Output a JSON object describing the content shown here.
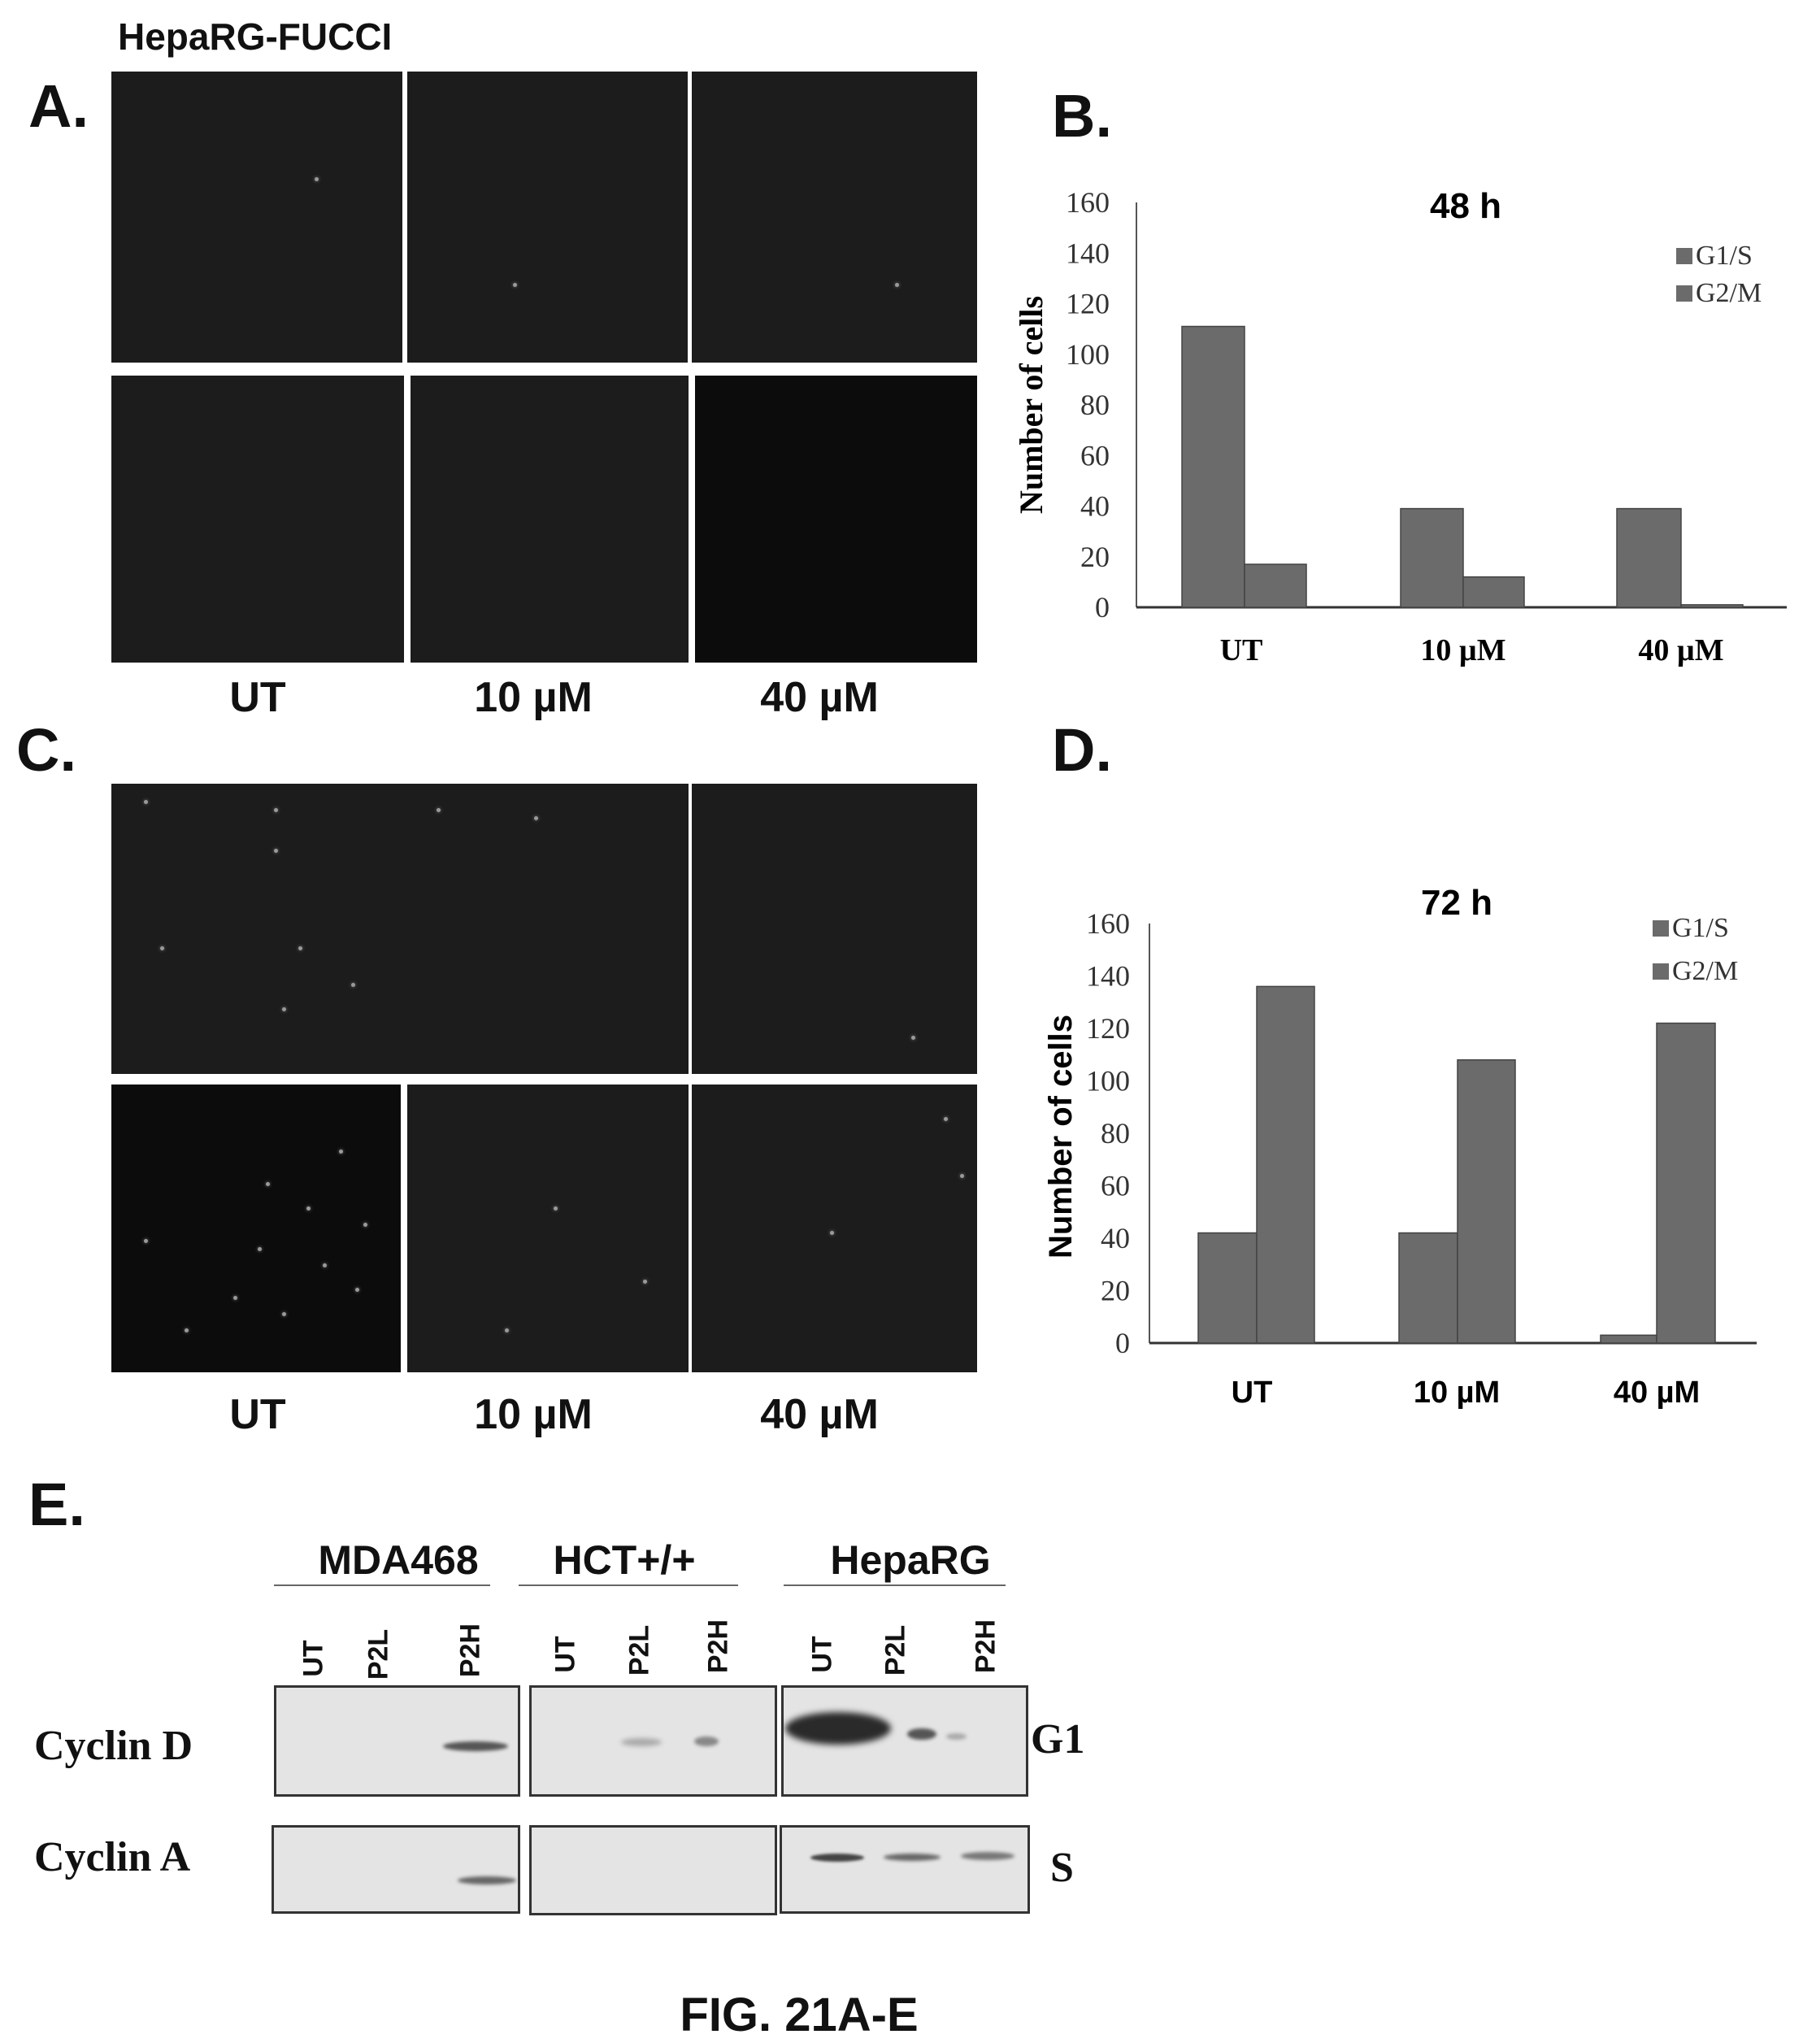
{
  "header": {
    "title": "HepaRG-FUCCI"
  },
  "panels": {
    "a": "A.",
    "b": "B.",
    "c": "C.",
    "d": "D.",
    "e": "E."
  },
  "conditions": [
    "UT",
    "10 µM",
    "40 µM"
  ],
  "chart_data": [
    {
      "type": "bar",
      "title": "48 h",
      "xlabel": "",
      "ylabel": "Number of cells",
      "categories": [
        "UT",
        "10 µM",
        "40 µM"
      ],
      "series": [
        {
          "name": "G1/S",
          "values": [
            111,
            39,
            39
          ]
        },
        {
          "name": "G2/M",
          "values": [
            17,
            12,
            1
          ]
        }
      ],
      "ylim": [
        0,
        160
      ],
      "yticks": [
        "0",
        "20",
        "40",
        "60",
        "80",
        "100",
        "120",
        "140",
        "160"
      ],
      "legend": "top-right",
      "grid": false
    },
    {
      "type": "bar",
      "title": "72 h",
      "xlabel": "",
      "ylabel": "Number of cells",
      "categories": [
        "UT",
        "10 µM",
        "40 µM"
      ],
      "series": [
        {
          "name": "G1/S",
          "values": [
            42,
            42,
            3
          ]
        },
        {
          "name": "G2/M",
          "values": [
            136,
            108,
            122
          ]
        }
      ],
      "ylim": [
        0,
        160
      ],
      "yticks": [
        "0",
        "20",
        "40",
        "60",
        "80",
        "100",
        "120",
        "140",
        "160"
      ],
      "legend": "top-right",
      "grid": false
    }
  ],
  "blot": {
    "cell_lines": [
      "MDA468",
      "HCT+/+",
      "HepaRG"
    ],
    "lanes": [
      "UT",
      "P2L",
      "P2H"
    ],
    "rows": [
      {
        "protein": "Cyclin D",
        "phase": "G1"
      },
      {
        "protein": "Cyclin A",
        "phase": "S"
      }
    ]
  },
  "figure_label": "FIG. 21A-E",
  "colors": {
    "bar": "#6b6b6b",
    "micrograph": "#1c1c1c",
    "blot_bg": "#e4e4e4"
  }
}
